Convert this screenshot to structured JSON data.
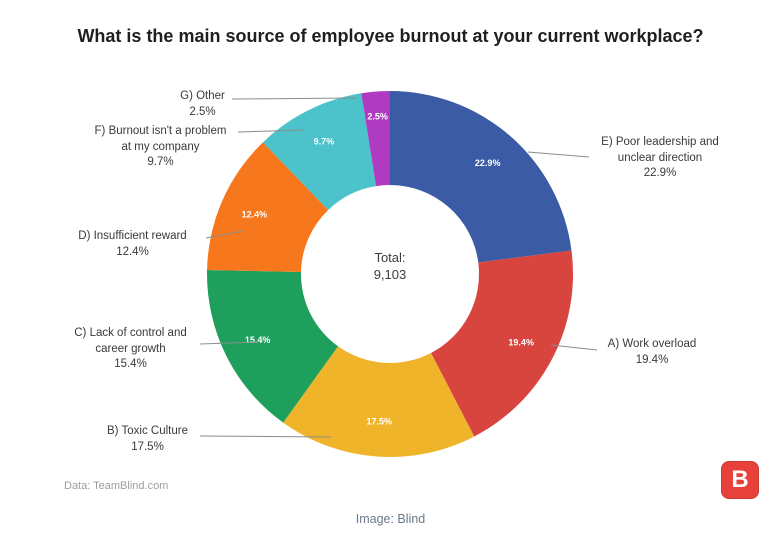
{
  "title": "What is the main source of employee burnout at your current workplace?",
  "chart_data": {
    "type": "pie",
    "subtype": "donut",
    "title": "What is the main source of employee burnout at your current workplace?",
    "direction": "clockwise",
    "start_angle_deg": 0,
    "legend_position": "outside-callouts",
    "center_text": {
      "label": "Total:",
      "value": "9,103"
    },
    "segments": [
      {
        "id": "E",
        "label": "E) Poor leadership and unclear direction",
        "value": 22.9,
        "pct_label": "22.9%",
        "color": "#3b5ba5"
      },
      {
        "id": "A",
        "label": "A) Work overload",
        "value": 19.4,
        "pct_label": "19.4%",
        "color": "#d8453e"
      },
      {
        "id": "B",
        "label": "B) Toxic Culture",
        "value": 17.5,
        "pct_label": "17.5%",
        "color": "#efb42a"
      },
      {
        "id": "C",
        "label": "C) Lack of control and career growth",
        "value": 15.4,
        "pct_label": "15.4%",
        "color": "#1ea05c"
      },
      {
        "id": "D",
        "label": "D) Insufficient reward",
        "value": 12.4,
        "pct_label": "12.4%",
        "color": "#f6771c"
      },
      {
        "id": "F",
        "label": "F) Burnout isn't a problem at my company",
        "value": 9.7,
        "pct_label": "9.7%",
        "color": "#4cc2ca"
      },
      {
        "id": "G",
        "label": "G) Other",
        "value": 2.5,
        "pct_label": "2.5%",
        "color": "#b03bc3"
      }
    ],
    "source": "Data: TeamBlind.com"
  },
  "callouts": {
    "g": "G) Other\n2.5%",
    "f": "F) Burnout isn't a problem\nat my company\n9.7%",
    "d": "D) Insufficient reward\n12.4%",
    "c": "C) Lack of control and\ncareer growth\n15.4%",
    "b": "B) Toxic Culture\n17.5%",
    "e": "E) Poor leadership and\nunclear direction\n22.9%",
    "a": "A) Work overload\n19.4%"
  },
  "center": {
    "text": "Total:\n9,103"
  },
  "source_note": "Data: TeamBlind.com",
  "logo": {
    "letter": "B",
    "bg_color": "#e8413c"
  },
  "caption": "Image: Blind"
}
